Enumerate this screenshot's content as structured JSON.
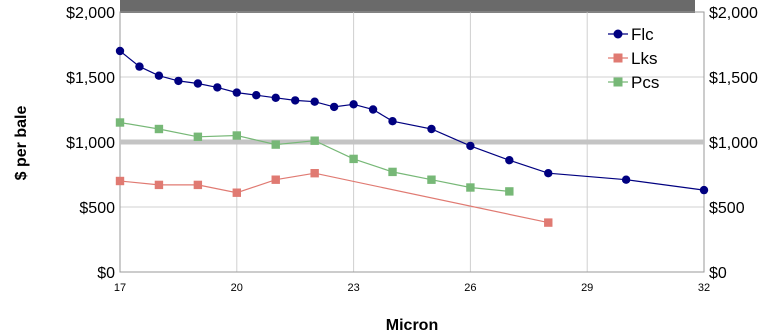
{
  "chart_data": {
    "type": "line",
    "title": "",
    "xlabel": "Micron",
    "ylabel": "$ per bale",
    "xlim": [
      17,
      32
    ],
    "ylim": [
      0,
      2000
    ],
    "x_ticks": [
      "17",
      "20",
      "23",
      "26",
      "29",
      "32"
    ],
    "y_ticks_left": [
      "$0",
      "$500",
      "$1,000",
      "$1,500",
      "$2,000"
    ],
    "y_ticks_right": [
      "$0",
      "$500",
      "$1,000",
      "$1,500",
      "$2,000"
    ],
    "grid": true,
    "reference_line": 1000,
    "legend_placement": "top-right",
    "series": [
      {
        "name": "Flc",
        "color": "#000080",
        "marker": "circle",
        "x": [
          17,
          17.5,
          18,
          18.5,
          19,
          19.5,
          20,
          20.5,
          21,
          21.5,
          22,
          22.5,
          23,
          23.5,
          24,
          25,
          26,
          27,
          28,
          30,
          32
        ],
        "y": [
          1700,
          1580,
          1510,
          1470,
          1450,
          1420,
          1380,
          1360,
          1340,
          1320,
          1310,
          1270,
          1290,
          1250,
          1160,
          1100,
          970,
          860,
          760,
          710,
          630
        ]
      },
      {
        "name": "Lks",
        "color": "#e07a72",
        "marker": "square",
        "x": [
          17,
          18,
          19,
          20,
          21,
          22,
          28
        ],
        "y": [
          700,
          670,
          670,
          610,
          710,
          760,
          380
        ]
      },
      {
        "name": "Pcs",
        "color": "#77b877",
        "marker": "square",
        "x": [
          17,
          18,
          19,
          20,
          21,
          22,
          23,
          24,
          25,
          26,
          27
        ],
        "y": [
          1150,
          1100,
          1040,
          1050,
          980,
          1010,
          870,
          770,
          710,
          650,
          620
        ]
      }
    ]
  }
}
